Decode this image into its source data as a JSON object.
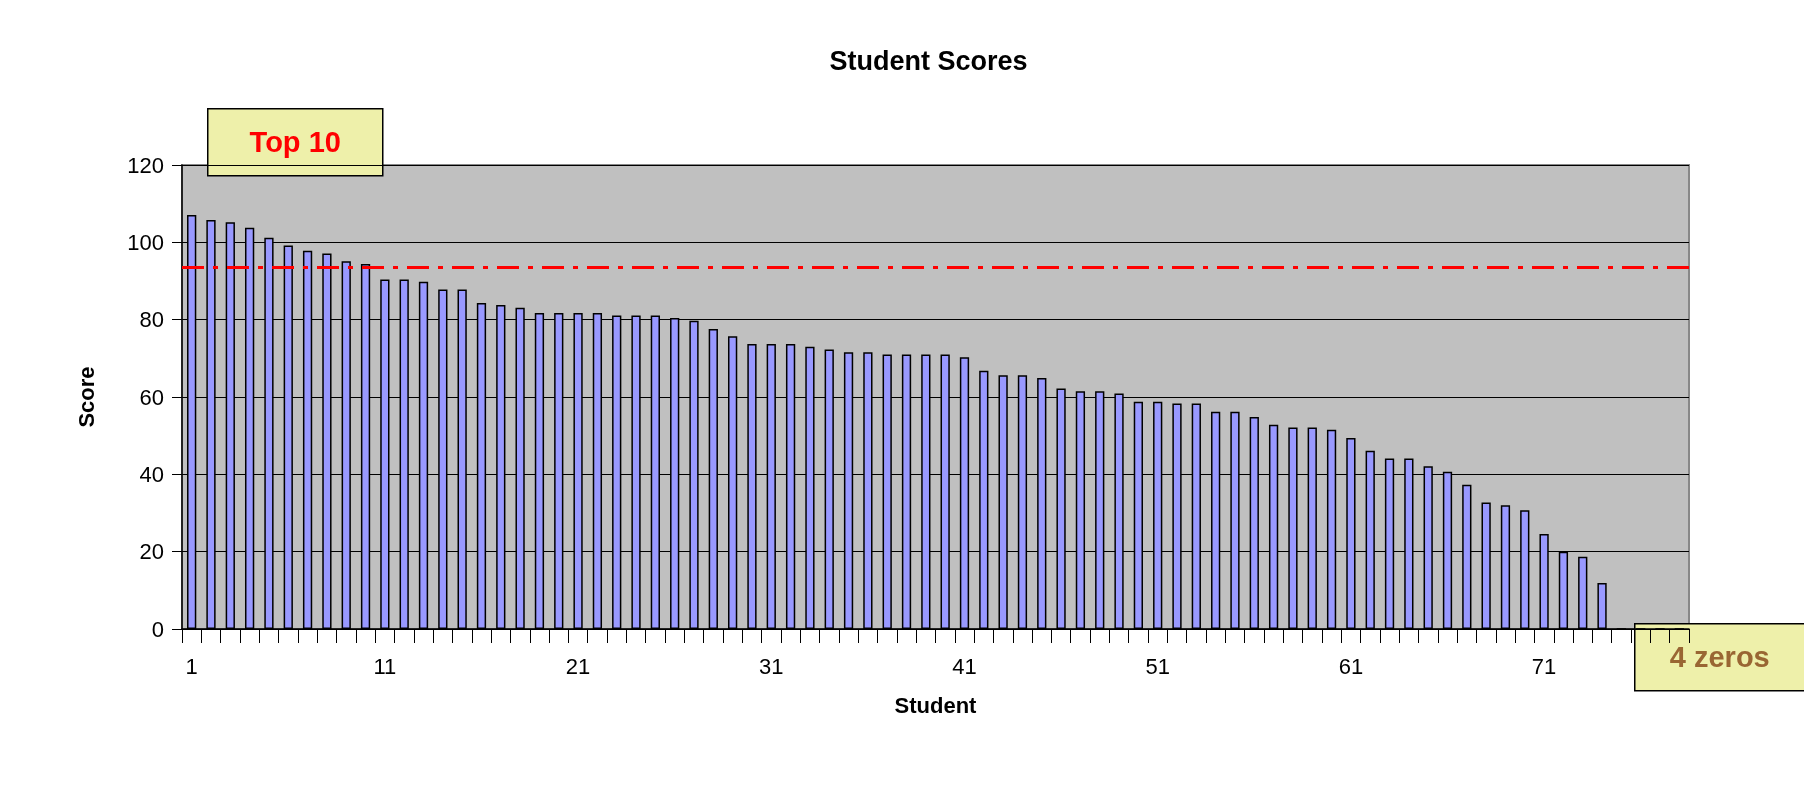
{
  "chart_data": {
    "type": "bar",
    "title": "Student Scores",
    "xlabel": "Student",
    "ylabel": "Score",
    "categories": [
      "1",
      null,
      null,
      null,
      null,
      null,
      null,
      null,
      null,
      null,
      "11",
      null,
      null,
      null,
      null,
      null,
      null,
      null,
      null,
      null,
      "21",
      null,
      null,
      null,
      null,
      null,
      null,
      null,
      null,
      null,
      "31",
      null,
      null,
      null,
      null,
      null,
      null,
      null,
      null,
      null,
      "41",
      null,
      null,
      null,
      null,
      null,
      null,
      null,
      null,
      null,
      "51",
      null,
      null,
      null,
      null,
      null,
      null,
      null,
      null,
      null,
      "61",
      null,
      null,
      null,
      null,
      null,
      null,
      null,
      null,
      null,
      "71",
      null,
      null,
      null,
      null,
      null,
      null,
      null
    ],
    "values": [
      107.1,
      105.8,
      105.2,
      103.8,
      101.2,
      99.2,
      97.8,
      97.1,
      95.1,
      94.4,
      90.4,
      90.4,
      89.8,
      87.8,
      87.8,
      84.3,
      83.8,
      83.1,
      81.7,
      81.7,
      81.7,
      81.7,
      81.1,
      81.1,
      81.1,
      80.4,
      79.7,
      77.6,
      75.7,
      73.7,
      73.7,
      73.7,
      73.0,
      72.3,
      71.6,
      71.6,
      71.0,
      71.0,
      71.0,
      71.0,
      70.3,
      66.8,
      65.6,
      65.6,
      64.9,
      62.2,
      61.5,
      61.5,
      60.9,
      58.8,
      58.8,
      58.3,
      58.3,
      56.2,
      56.2,
      54.8,
      52.8,
      52.1,
      52.1,
      51.5,
      49.4,
      46.1,
      44.1,
      44.1,
      42.1,
      40.7,
      37.3,
      32.7,
      32.0,
      30.7,
      24.6,
      20.0,
      18.7,
      11.9,
      0,
      0,
      0,
      0
    ],
    "color": "#9999ff",
    "ylim": [
      0,
      120
    ],
    "yticks": [
      0,
      20,
      40,
      60,
      80,
      100,
      120
    ],
    "grid": "y",
    "ref_lines": [
      {
        "axis": "y",
        "value": 93.5,
        "color": "#ff0000",
        "line_style": "dashed"
      }
    ],
    "annotations": [
      "Top 10",
      "4 zeros"
    ]
  }
}
